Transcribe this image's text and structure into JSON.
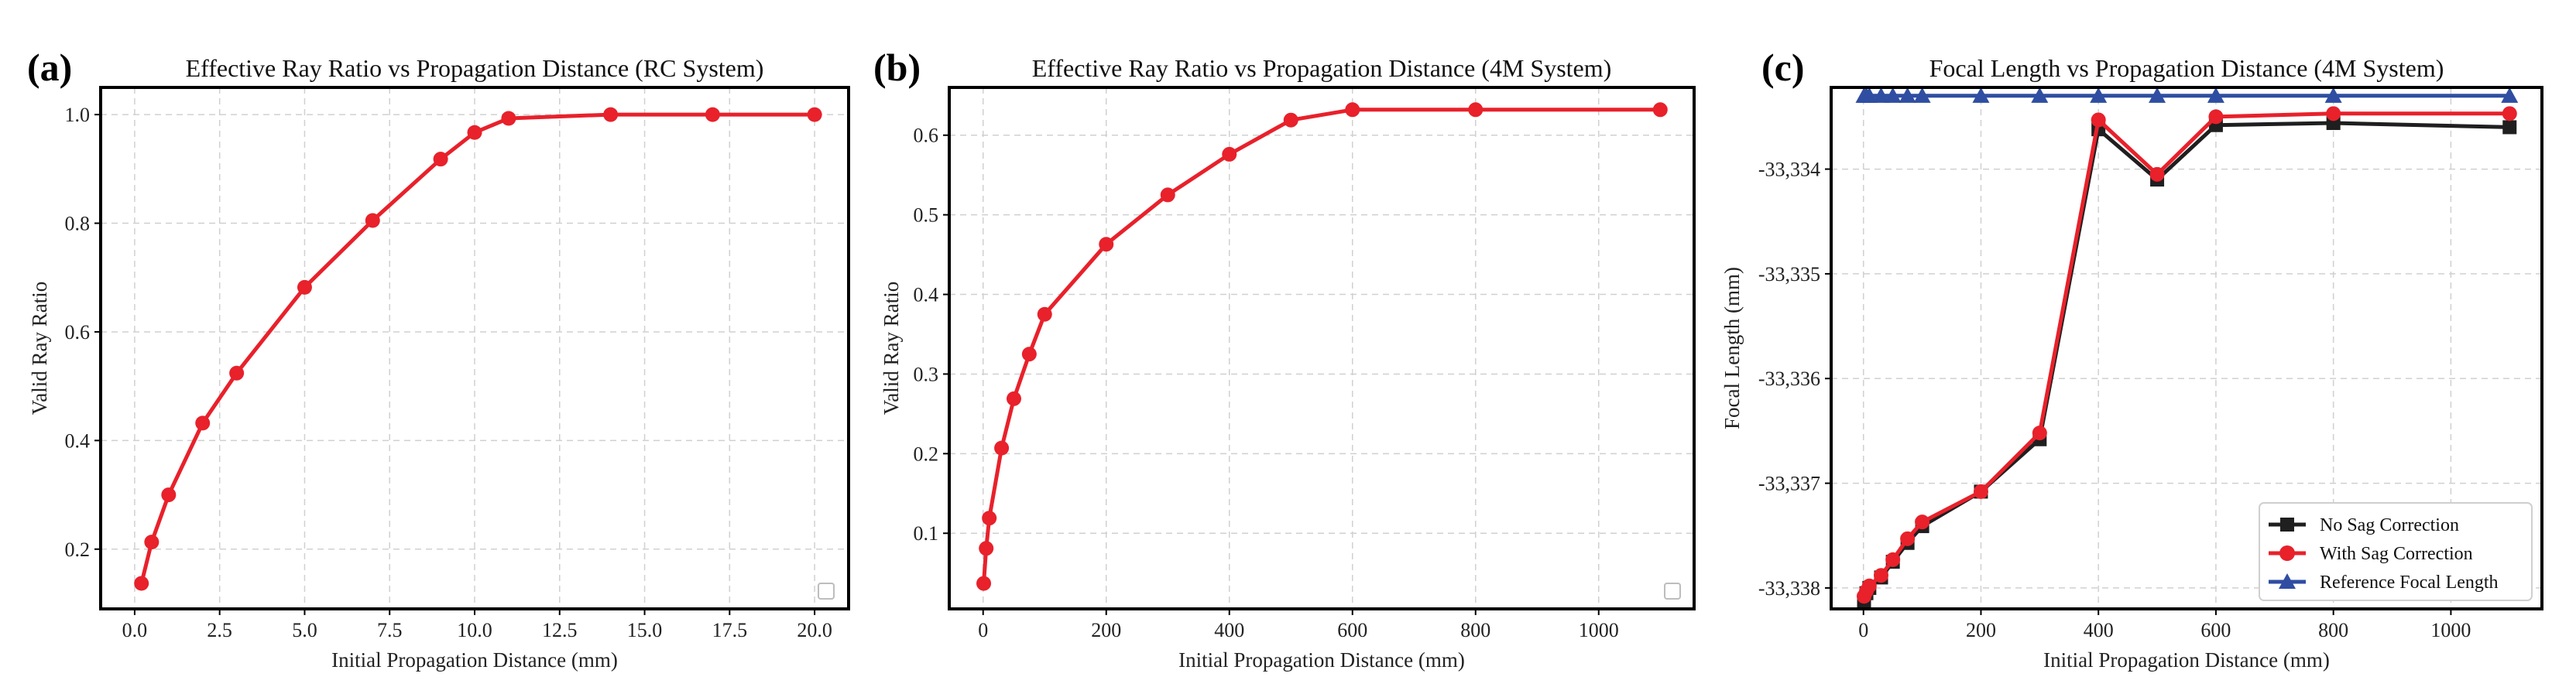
{
  "chart_data": [
    {
      "type": "line",
      "panel_label": "(a)",
      "title": "Effective Ray Ratio vs Propagation Distance (RC System)",
      "xlabel": "Initial Propagation Distance (mm)",
      "ylabel": "Valid Ray Ratio",
      "xlim": [
        -1.0,
        21.0
      ],
      "ylim": [
        0.09,
        1.05
      ],
      "xticks": [
        0.0,
        2.5,
        5.0,
        7.5,
        10.0,
        12.5,
        15.0,
        17.5,
        20.0
      ],
      "xtick_labels": [
        "0.0",
        "2.5",
        "5.0",
        "7.5",
        "10.0",
        "12.5",
        "15.0",
        "17.5",
        "20.0"
      ],
      "yticks": [
        0.2,
        0.4,
        0.6,
        0.8,
        1.0
      ],
      "ytick_labels": [
        "0.2",
        "0.4",
        "0.6",
        "0.8",
        "1.0"
      ],
      "grid": true,
      "legend": "bottom-right (empty)",
      "series": [
        {
          "name": "Valid Ray Ratio",
          "color": "#e8212b",
          "marker": "circle",
          "x": [
            0.2,
            0.5,
            1,
            2,
            3,
            5,
            7,
            9,
            10,
            11,
            14,
            17,
            20
          ],
          "y": [
            0.137,
            0.213,
            0.3,
            0.432,
            0.524,
            0.682,
            0.805,
            0.918,
            0.967,
            0.993,
            1.0,
            1.0,
            1.0
          ]
        }
      ]
    },
    {
      "type": "line",
      "panel_label": "(b)",
      "title": "Effective Ray Ratio vs Propagation Distance (4M System)",
      "xlabel": "Initial Propagation Distance (mm)",
      "ylabel": "Valid Ray Ratio",
      "xlim": [
        -55,
        1155
      ],
      "ylim": [
        0.005,
        0.66
      ],
      "xticks": [
        0,
        200,
        400,
        600,
        800,
        1000
      ],
      "xtick_labels": [
        "0",
        "200",
        "400",
        "600",
        "800",
        "1000"
      ],
      "yticks": [
        0.1,
        0.2,
        0.3,
        0.4,
        0.5,
        0.6
      ],
      "ytick_labels": [
        "0.1",
        "0.2",
        "0.3",
        "0.4",
        "0.5",
        "0.6"
      ],
      "grid": true,
      "legend": "bottom-right (empty)",
      "series": [
        {
          "name": "Valid Ray Ratio",
          "color": "#e8212b",
          "marker": "circle",
          "x": [
            1,
            5,
            10,
            30,
            50,
            75,
            100,
            200,
            300,
            400,
            500,
            600,
            800,
            1100
          ],
          "y": [
            0.037,
            0.081,
            0.119,
            0.207,
            0.269,
            0.325,
            0.375,
            0.463,
            0.525,
            0.576,
            0.619,
            0.632,
            0.632,
            0.632
          ]
        }
      ]
    },
    {
      "type": "line",
      "panel_label": "(c)",
      "title": "Focal Length vs Propagation Distance (4M System)",
      "xlabel": "Initial Propagation Distance (mm)",
      "ylabel": "Focal Length (mm)",
      "xlim": [
        -55,
        1155
      ],
      "ylim": [
        -33338.2,
        -33333.22
      ],
      "xticks": [
        0,
        200,
        400,
        600,
        800,
        1000
      ],
      "xtick_labels": [
        "0",
        "200",
        "400",
        "600",
        "800",
        "1000"
      ],
      "yticks": [
        -33338,
        -33337,
        -33336,
        -33335,
        -33334
      ],
      "ytick_labels": [
        "-33,338",
        "-33,337",
        "-33,336",
        "-33,335",
        "-33,334"
      ],
      "grid": true,
      "legend": "bottom-right",
      "series": [
        {
          "name": "No Sag Correction",
          "color": "#1f1f1f",
          "marker": "square",
          "x": [
            1,
            5,
            10,
            30,
            50,
            75,
            100,
            200,
            300,
            400,
            500,
            600,
            800,
            1100
          ],
          "y": [
            -33338.12,
            -33338.05,
            -33338.0,
            -33337.9,
            -33337.75,
            -33337.57,
            -33337.41,
            -33337.08,
            -33336.58,
            -33333.62,
            -33334.1,
            -33333.58,
            -33333.56,
            -33333.6
          ]
        },
        {
          "name": "With Sag Correction",
          "color": "#e8212b",
          "marker": "circle",
          "x": [
            1,
            5,
            10,
            30,
            50,
            75,
            100,
            200,
            300,
            400,
            500,
            600,
            800,
            1100
          ],
          "y": [
            -33338.08,
            -33338.03,
            -33337.98,
            -33337.88,
            -33337.73,
            -33337.53,
            -33337.37,
            -33337.08,
            -33336.52,
            -33333.53,
            -33334.05,
            -33333.5,
            -33333.47,
            -33333.47
          ]
        },
        {
          "name": "Reference Focal Length",
          "color": "#2f4ea2",
          "marker": "triangle",
          "x": [
            1,
            5,
            10,
            30,
            50,
            75,
            100,
            200,
            300,
            400,
            500,
            600,
            800,
            1100
          ],
          "y": [
            -33333.3,
            -33333.3,
            -33333.3,
            -33333.3,
            -33333.3,
            -33333.3,
            -33333.3,
            -33333.3,
            -33333.3,
            -33333.3,
            -33333.3,
            -33333.3,
            -33333.3,
            -33333.3
          ]
        }
      ]
    }
  ]
}
